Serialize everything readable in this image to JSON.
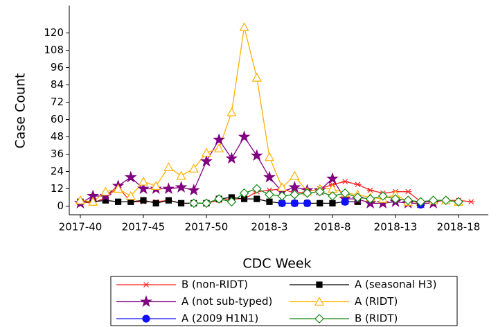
{
  "chart_data": {
    "type": "line",
    "x_label": "CDC Week",
    "y_label": "Case Count",
    "categories": [
      "2017-40",
      null,
      null,
      null,
      null,
      "2017-45",
      null,
      null,
      null,
      null,
      "2017-50",
      null,
      null,
      null,
      null,
      "2018-3",
      null,
      null,
      null,
      null,
      "2018-8",
      null,
      null,
      null,
      null,
      "2018-13",
      null,
      null,
      null,
      null,
      "2018-18",
      null
    ],
    "ylim": [
      -6,
      139
    ],
    "yticks": [
      0,
      12,
      24,
      36,
      48,
      60,
      72,
      84,
      96,
      108,
      120
    ],
    "grid": false,
    "legend": "bottom",
    "series": [
      {
        "name": "B (non-RIDT)",
        "color": "#ff2020",
        "marker": "asterisk",
        "values": [
          3,
          2,
          6,
          13,
          3,
          3,
          3,
          4,
          2,
          2,
          2,
          4,
          5,
          5,
          10,
          11,
          12,
          9,
          10,
          12,
          15,
          17,
          15,
          11,
          9,
          10,
          10,
          3,
          3,
          4,
          4,
          3
        ]
      },
      {
        "name": "A (seasonal H3)",
        "color": "#000000",
        "marker": "square",
        "values": [
          3,
          3,
          4,
          3,
          3,
          4,
          2,
          4,
          2,
          2,
          2,
          5,
          6,
          5,
          5,
          3,
          2,
          2,
          2,
          2,
          2,
          3,
          3,
          null,
          null,
          null,
          null,
          null,
          null,
          null,
          null,
          null
        ]
      },
      {
        "name": "A (not sub-typed)",
        "color": "#800080",
        "marker": "star",
        "values": [
          2,
          7,
          7,
          14,
          20,
          12,
          12,
          12,
          13,
          11,
          31,
          46,
          33,
          48,
          35,
          20,
          10,
          13,
          11,
          11,
          19,
          5,
          5,
          2,
          2,
          3,
          2,
          2,
          2,
          null,
          null,
          null
        ]
      },
      {
        "name": "A (RIDT)",
        "color": "#ffb000",
        "marker": "triangle",
        "values": [
          4,
          3,
          10,
          12,
          7,
          17,
          14,
          27,
          21,
          26,
          37,
          40,
          65,
          124,
          89,
          34,
          13,
          21,
          10,
          12,
          12,
          9,
          8,
          6,
          5,
          8,
          3,
          3,
          4,
          4,
          3,
          null
        ]
      },
      {
        "name": "A (2009 H1N1)",
        "color": "#1010ff",
        "marker": "circle",
        "values": [
          null,
          null,
          null,
          null,
          null,
          null,
          null,
          null,
          null,
          null,
          null,
          null,
          null,
          null,
          null,
          null,
          2,
          2,
          2,
          null,
          null,
          3,
          null,
          null,
          null,
          null,
          null,
          1,
          null,
          null,
          null,
          null
        ]
      },
      {
        "name": "B (RIDT)",
        "color": "#118811",
        "marker": "diamond",
        "values": [
          null,
          null,
          null,
          null,
          null,
          null,
          null,
          null,
          null,
          2,
          2,
          5,
          3,
          9,
          12,
          8,
          7,
          8,
          9,
          10,
          7,
          9,
          6,
          5,
          7,
          5,
          4,
          3,
          4,
          4,
          3,
          null
        ]
      }
    ]
  }
}
